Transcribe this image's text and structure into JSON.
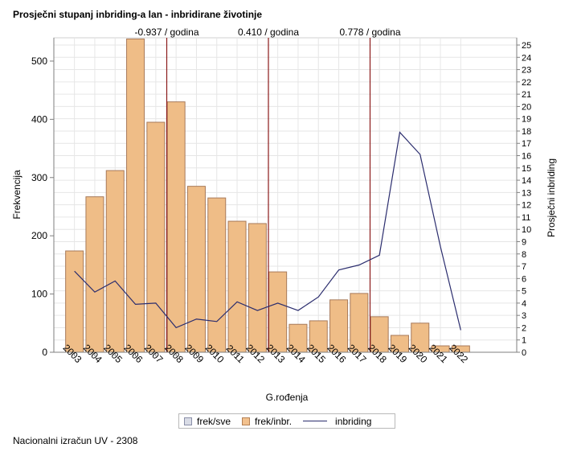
{
  "title": "Prosječni stupanj inbriding-a lan - inbridirane životinje",
  "footer": "Nacionalni izračun UV - 2308",
  "legend": {
    "items": [
      {
        "label": "frek/sve",
        "kind": "swatch-sve"
      },
      {
        "label": "frek/inbr.",
        "kind": "swatch-inbr"
      },
      {
        "label": "inbriding",
        "kind": "line"
      }
    ]
  },
  "colors": {
    "bar_fill": "#efbd87",
    "bar_stroke": "#a87a5a",
    "line": "#2b2d6e",
    "ref_line": "#8b1a1a",
    "grid": "#e6e6e6",
    "axis": "#7f7f7f"
  },
  "chart_data": {
    "type": "bar",
    "title": "Prosječni stupanj inbriding-a lan - inbridirane životinje",
    "xlabel": "G.rođenja",
    "ylabel": "Frekvencija",
    "y2label": "Prosječni inbriding",
    "categories": [
      "2003",
      "2004",
      "2005",
      "2006",
      "2007",
      "2008",
      "2009",
      "2010",
      "2011",
      "2012",
      "2013",
      "2014",
      "2015",
      "2016",
      "2017",
      "2018",
      "2019",
      "2020",
      "2021",
      "2022"
    ],
    "ylim": [
      0,
      540
    ],
    "y_ticks": [
      0,
      100,
      200,
      300,
      400,
      500
    ],
    "y2lim": [
      0,
      25
    ],
    "y2_ticks": [
      0,
      1,
      2,
      3,
      4,
      5,
      6,
      7,
      8,
      9,
      10,
      11,
      12,
      13,
      14,
      15,
      16,
      17,
      18,
      19,
      20,
      21,
      22,
      23,
      24,
      25
    ],
    "grid": true,
    "legend_position": "bottom",
    "series": [
      {
        "name": "frek/inbr.",
        "type": "bar",
        "axis": "left",
        "values": [
          174,
          267,
          312,
          538,
          395,
          430,
          285,
          265,
          225,
          221,
          138,
          48,
          54,
          90,
          101,
          61,
          29,
          50,
          11,
          11
        ]
      },
      {
        "name": "inbriding",
        "type": "line",
        "axis": "right",
        "values": [
          6.6,
          4.9,
          5.8,
          3.9,
          4.0,
          2.0,
          2.7,
          2.5,
          4.1,
          3.4,
          4.0,
          3.4,
          4.5,
          6.7,
          7.1,
          7.9,
          17.9,
          16.1,
          8.6,
          1.8
        ]
      }
    ],
    "reference_lines": [
      {
        "x_after": "2007",
        "label": "-0.937 / godina"
      },
      {
        "x_after": "2012",
        "label": "0.410 / godina"
      },
      {
        "x_after": "2017",
        "label": "0.778 / godina"
      }
    ]
  }
}
